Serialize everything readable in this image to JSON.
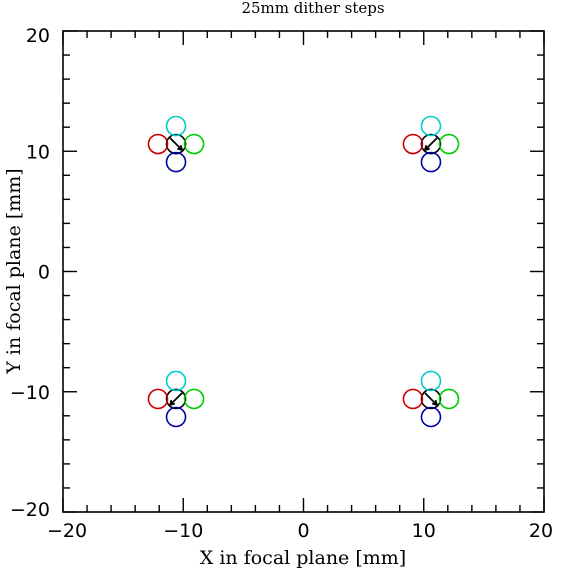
{
  "chart_data": {
    "type": "scatter",
    "title": "25mm dither steps",
    "xlabel": "X in focal plane [mm]",
    "ylabel": "Y in focal plane [mm]",
    "xlim": [
      -20,
      20
    ],
    "ylim": [
      -20,
      20
    ],
    "xticks": [
      -20,
      -10,
      0,
      10,
      20
    ],
    "yticks": [
      -20,
      -10,
      0,
      10,
      20
    ],
    "xtick_labels": [
      "−20",
      "−10",
      "0",
      "10",
      "20"
    ],
    "ytick_labels": [
      "−20",
      "−10",
      "0",
      "10",
      "20"
    ],
    "marker": "open-circle",
    "grid": false,
    "legend": "none",
    "series": [
      {
        "color": "#000000",
        "x": [
          -10.6,
          10.6,
          -10.6,
          10.6
        ],
        "y": [
          10.6,
          10.6,
          -10.6,
          -10.6
        ]
      },
      {
        "color": "#cc0000",
        "x": [
          -12.1,
          9.1,
          -12.1,
          9.1
        ],
        "y": [
          10.6,
          10.6,
          -10.6,
          -10.6
        ]
      },
      {
        "color": "#00cc00",
        "x": [
          -9.1,
          12.1,
          -9.1,
          12.1
        ],
        "y": [
          10.6,
          10.6,
          -10.6,
          -10.6
        ]
      },
      {
        "color": "#00cccc",
        "x": [
          -10.6,
          10.6,
          -10.6,
          10.6
        ],
        "y": [
          12.1,
          12.1,
          -9.1,
          -9.1
        ]
      },
      {
        "color": "#0000aa",
        "x": [
          -10.6,
          10.6,
          -10.6,
          10.6
        ],
        "y": [
          9.1,
          9.1,
          -12.1,
          -12.1
        ]
      }
    ],
    "arrows": [
      {
        "x1": -11.1,
        "y1": 11.1,
        "x2": -10.1,
        "y2": 10.1
      },
      {
        "x1": 11.1,
        "y1": 11.1,
        "x2": 10.1,
        "y2": 10.1
      },
      {
        "x1": -10.1,
        "y1": -10.1,
        "x2": -11.1,
        "y2": -11.1
      },
      {
        "x1": 10.1,
        "y1": -10.1,
        "x2": 11.1,
        "y2": -11.1
      }
    ]
  }
}
